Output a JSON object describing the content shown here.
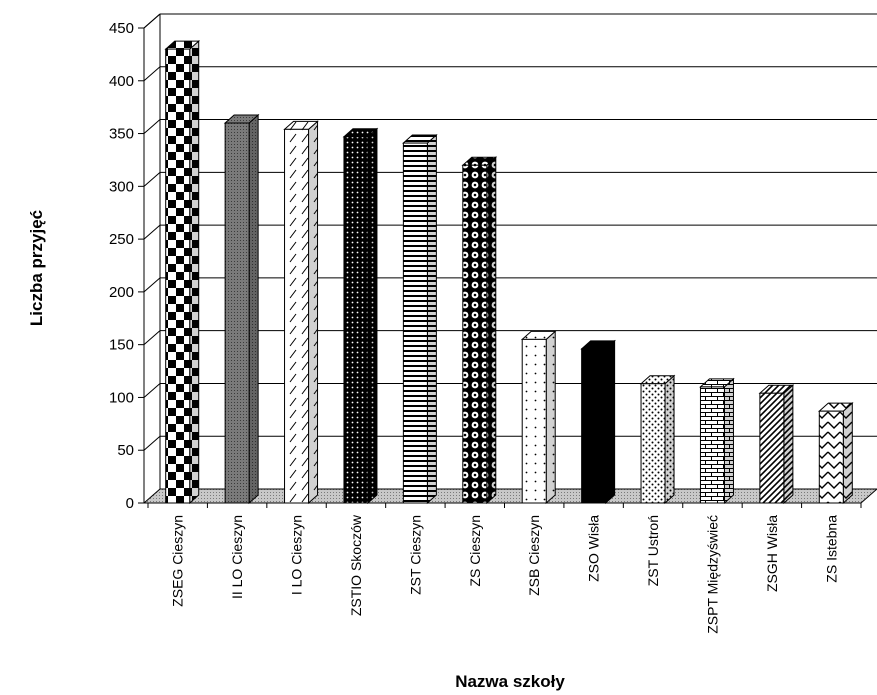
{
  "chart_data": {
    "type": "bar",
    "title": "",
    "xlabel": "Nazwa szkoły",
    "ylabel": "Liczba przyjęć",
    "ylim": [
      0,
      450
    ],
    "yticks": [
      0,
      50,
      100,
      150,
      200,
      250,
      300,
      350,
      400,
      450
    ],
    "grid": true,
    "legend": "none",
    "categories": [
      "ZSEG Cieszyn",
      "II LO Cieszyn",
      "I LO Cieszyn",
      "ZSTIO Skoczów",
      "ZST Cieszyn",
      "ZS Cieszyn",
      "ZSB Cieszyn",
      "ZSO Wisła",
      "ZST Ustroń",
      "ZSPT Międzyświeć",
      "ZSGH Wisła",
      "ZS Istebna"
    ],
    "values": [
      430,
      360,
      354,
      347,
      341,
      320,
      155,
      146,
      113,
      110,
      104,
      87
    ],
    "patterns": [
      "checker",
      "gray",
      "dashed",
      "dotted-black",
      "hstripes",
      "circles",
      "sparse-dots",
      "black",
      "dots",
      "bricks",
      "diagonal",
      "zigzag"
    ]
  }
}
